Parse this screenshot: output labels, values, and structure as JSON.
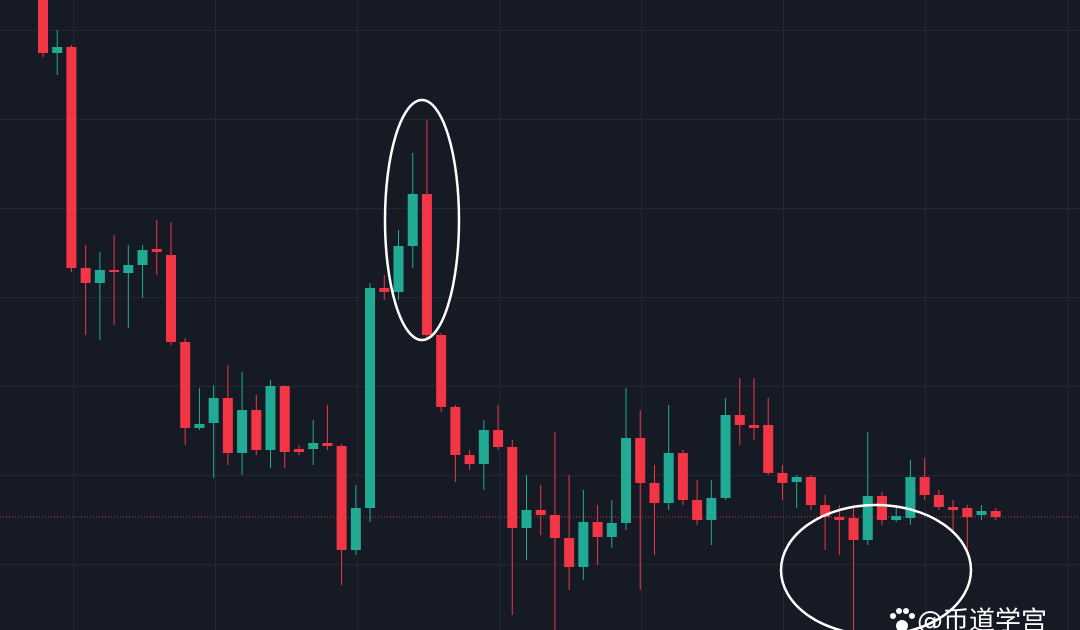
{
  "chart_data": {
    "type": "candlestick",
    "open": [
      630,
      577,
      583,
      362,
      347,
      360,
      357,
      365,
      381,
      375,
      288,
      202,
      207,
      232,
      177,
      220,
      180,
      244,
      181,
      181,
      187,
      184,
      80,
      122,
      342,
      338,
      384,
      436,
      295,
      223,
      175,
      166,
      200,
      183,
      102,
      120,
      115,
      92,
      63,
      108,
      93,
      107,
      192,
      147,
      127,
      177,
      130,
      110,
      132,
      215,
      205,
      205,
      157,
      148,
      153,
      125,
      113,
      112,
      90,
      134,
      110,
      112,
      153,
      135,
      123,
      122,
      115,
      119
    ],
    "close": [
      577,
      583,
      362,
      347,
      360,
      358,
      365,
      380,
      378,
      288,
      202,
      206,
      232,
      177,
      220,
      180,
      244,
      178,
      178,
      187,
      184,
      80,
      122,
      342,
      338,
      384,
      436,
      295,
      223,
      175,
      166,
      200,
      183,
      102,
      120,
      115,
      92,
      63,
      108,
      93,
      107,
      192,
      147,
      127,
      177,
      130,
      110,
      132,
      215,
      205,
      202,
      157,
      147,
      153,
      125,
      113,
      110,
      90,
      134,
      110,
      114,
      153,
      135,
      123,
      120,
      113,
      119,
      113
    ],
    "high": [
      640,
      600,
      585,
      385,
      378,
      395,
      385,
      385,
      410,
      408,
      292,
      242,
      245,
      265,
      258,
      235,
      250,
      245,
      185,
      210,
      225,
      186,
      145,
      347,
      355,
      400,
      477,
      510,
      297,
      225,
      180,
      210,
      225,
      190,
      155,
      145,
      198,
      155,
      140,
      125,
      130,
      242,
      220,
      165,
      225,
      180,
      150,
      150,
      232,
      252,
      252,
      232,
      165,
      155,
      155,
      135,
      125,
      125,
      198,
      138,
      125,
      170,
      172,
      140,
      130,
      125,
      125,
      122
    ],
    "low": [
      573,
      555,
      358,
      295,
      290,
      305,
      302,
      332,
      355,
      285,
      185,
      200,
      152,
      165,
      155,
      175,
      162,
      162,
      175,
      165,
      180,
      45,
      75,
      108,
      330,
      330,
      362,
      292,
      218,
      148,
      160,
      140,
      180,
      15,
      70,
      95,
      0,
      40,
      50,
      65,
      82,
      100,
      40,
      75,
      120,
      125,
      105,
      85,
      130,
      185,
      190,
      155,
      130,
      122,
      120,
      80,
      75,
      0,
      85,
      105,
      108,
      105,
      130,
      120,
      100,
      75,
      110,
      110
    ],
    "ylim": [
      0,
      640
    ],
    "last_price": 113,
    "up_color": "#22ab94",
    "down_color": "#f23645",
    "watermark": "@币道学宫"
  }
}
